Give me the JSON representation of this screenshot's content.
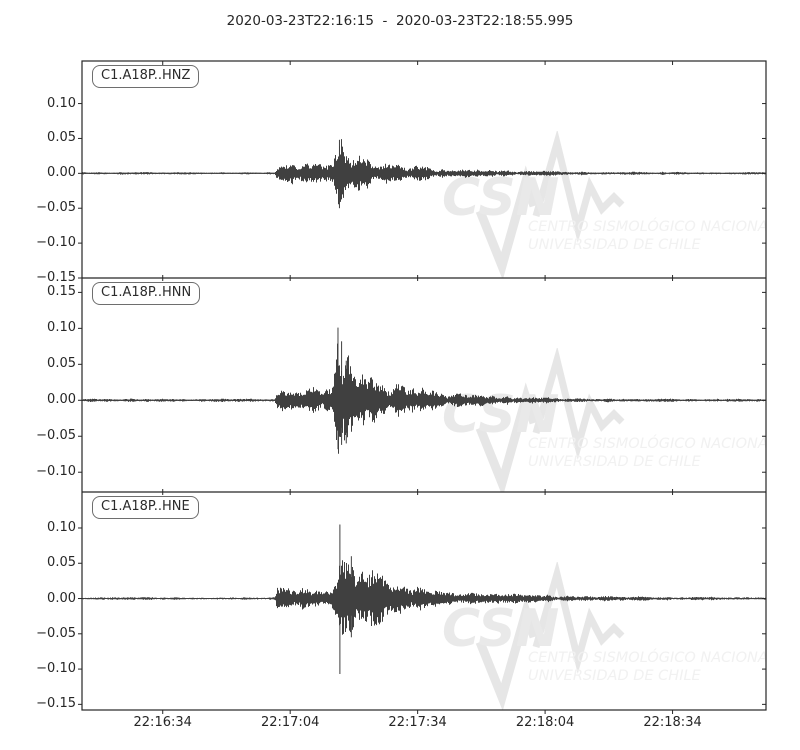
{
  "title": "2020-03-23T22:16:15  -  2020-03-23T22:18:55.995",
  "watermark": {
    "acronym": "CSN",
    "line1": "CENTRO SISMOLÓGICO NACIONAL",
    "line2": "UNIVERSIDAD DE CHILE"
  },
  "colors": {
    "trace": "#404040",
    "axis": "#262626",
    "tick_label": "#262626",
    "watermark_big": "#e9e9e9",
    "watermark_zigzag": "#e6e6e6",
    "watermark_text": "#f1f1f1"
  },
  "chart_data": {
    "type": "line",
    "title": "2020-03-23T22:16:15  -  2020-03-23T22:18:55.995",
    "x_start_label": "22:16:15",
    "x_end_label": "22:18:55.995",
    "x_duration_s": 160.995,
    "x_ticks": [
      {
        "t_s": 19,
        "label": "22:16:34"
      },
      {
        "t_s": 49,
        "label": "22:17:04"
      },
      {
        "t_s": 79,
        "label": "22:17:34"
      },
      {
        "t_s": 109,
        "label": "22:18:04"
      },
      {
        "t_s": 139,
        "label": "22:18:34"
      }
    ],
    "grid": false,
    "panels": [
      {
        "id": "HNZ",
        "label": "C1.A18P..HNZ",
        "ylim": [
          -0.15,
          0.161
        ],
        "yticks": [
          {
            "label": "0.10",
            "v": 0.1
          },
          {
            "label": "0.05",
            "v": 0.05
          },
          {
            "label": "0.00",
            "v": 0.0
          },
          {
            "label": "−0.05",
            "v": -0.05
          },
          {
            "label": "−0.10",
            "v": -0.1
          },
          {
            "label": "−0.15",
            "v": -0.15
          }
        ],
        "p_arrival_s": 45.8,
        "s_arrival_s": 60.5,
        "envelope": [
          [
            0,
            0.0013
          ],
          [
            45.3,
            0.0013
          ],
          [
            45.8,
            0.012
          ],
          [
            48,
            0.011
          ],
          [
            51,
            0.012
          ],
          [
            54,
            0.011
          ],
          [
            57,
            0.013
          ],
          [
            59,
            0.018
          ],
          [
            60.2,
            0.044
          ],
          [
            61.2,
            0.044
          ],
          [
            62,
            0.03
          ],
          [
            64,
            0.024
          ],
          [
            66,
            0.02
          ],
          [
            69,
            0.016
          ],
          [
            73,
            0.012
          ],
          [
            78,
            0.009
          ],
          [
            84,
            0.006
          ],
          [
            92,
            0.0045
          ],
          [
            102,
            0.003
          ],
          [
            115,
            0.0022
          ],
          [
            135,
            0.0016
          ],
          [
            161,
            0.0013
          ]
        ],
        "spikes": [
          {
            "t_s": 60.6,
            "up": 0.048,
            "down": -0.05
          }
        ]
      },
      {
        "id": "HNN",
        "label": "C1.A18P..HNN",
        "ylim": [
          -0.1275,
          0.17
        ],
        "yticks": [
          {
            "label": "0.15",
            "v": 0.15
          },
          {
            "label": "0.10",
            "v": 0.1
          },
          {
            "label": "0.05",
            "v": 0.05
          },
          {
            "label": "0.00",
            "v": 0.0
          },
          {
            "label": "−0.05",
            "v": -0.05
          },
          {
            "label": "−0.10",
            "v": -0.1
          }
        ],
        "p_arrival_s": 45.8,
        "s_arrival_s": 60.25,
        "envelope": [
          [
            0,
            0.0018
          ],
          [
            45.3,
            0.0018
          ],
          [
            45.8,
            0.015
          ],
          [
            48,
            0.013
          ],
          [
            50,
            0.016
          ],
          [
            53,
            0.013
          ],
          [
            56,
            0.014
          ],
          [
            58.5,
            0.016
          ],
          [
            59.6,
            0.05
          ],
          [
            60.3,
            0.068
          ],
          [
            61.5,
            0.064
          ],
          [
            62.5,
            0.05
          ],
          [
            64,
            0.042
          ],
          [
            66,
            0.034
          ],
          [
            68,
            0.027
          ],
          [
            71,
            0.022
          ],
          [
            75,
            0.017
          ],
          [
            80,
            0.013
          ],
          [
            86,
            0.009
          ],
          [
            93,
            0.0065
          ],
          [
            102,
            0.0045
          ],
          [
            113,
            0.003
          ],
          [
            130,
            0.002
          ],
          [
            145,
            0.0016
          ],
          [
            161,
            0.0014
          ]
        ],
        "spikes": [
          {
            "t_s": 60.25,
            "up": 0.101,
            "down": -0.068
          },
          {
            "t_s": 61.1,
            "up": 0.082,
            "down": -0.062
          },
          {
            "t_s": 62.2,
            "up": 0.055,
            "down": -0.06
          }
        ]
      },
      {
        "id": "HNE",
        "label": "C1.A18P..HNE",
        "ylim": [
          -0.158,
          0.151
        ],
        "yticks": [
          {
            "label": "0.10",
            "v": 0.1
          },
          {
            "label": "0.05",
            "v": 0.05
          },
          {
            "label": "0.00",
            "v": 0.0
          },
          {
            "label": "−0.05",
            "v": -0.05
          },
          {
            "label": "−0.10",
            "v": -0.1
          },
          {
            "label": "−0.15",
            "v": -0.15
          }
        ],
        "p_arrival_s": 45.8,
        "s_arrival_s": 60.7,
        "envelope": [
          [
            0,
            0.0014
          ],
          [
            45.3,
            0.0014
          ],
          [
            45.8,
            0.013
          ],
          [
            48,
            0.012
          ],
          [
            51,
            0.013
          ],
          [
            54,
            0.012
          ],
          [
            57,
            0.013
          ],
          [
            59,
            0.02
          ],
          [
            60.2,
            0.042
          ],
          [
            60.8,
            0.048
          ],
          [
            62,
            0.038
          ],
          [
            63.5,
            0.042
          ],
          [
            65,
            0.032
          ],
          [
            67,
            0.028
          ],
          [
            69,
            0.031
          ],
          [
            71,
            0.024
          ],
          [
            74,
            0.02
          ],
          [
            78,
            0.016
          ],
          [
            83,
            0.012
          ],
          [
            89,
            0.009
          ],
          [
            96,
            0.0065
          ],
          [
            105,
            0.0045
          ],
          [
            118,
            0.003
          ],
          [
            135,
            0.0022
          ],
          [
            161,
            0.0016
          ]
        ],
        "spikes": [
          {
            "t_s": 60.7,
            "up": 0.105,
            "down": -0.107
          },
          {
            "t_s": 63.4,
            "up": 0.06,
            "down": -0.055
          }
        ]
      }
    ]
  }
}
